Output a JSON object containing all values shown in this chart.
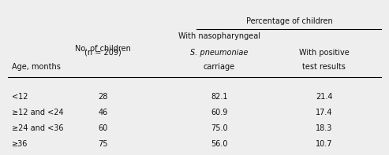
{
  "header_top": "Percentage of children",
  "col0_header_line1": "Age, months",
  "col1_header_line1": "No. of children",
  "col1_header_line2": "(n = 209)",
  "col2_header_line1": "With nasopharyngeal",
  "col2_header_line2": "S. pneumoniae",
  "col2_header_line3": "carriage",
  "col3_header_line1": "With positive",
  "col3_header_line2": "test results",
  "rows": [
    [
      "<12",
      "28",
      "82.1",
      "21.4"
    ],
    [
      "≥12 and <24",
      "46",
      "60.9",
      "17.4"
    ],
    [
      "≥24 and <36",
      "60",
      "75.0",
      "18.3"
    ],
    [
      "≥36",
      "75",
      "56.0",
      "10.7"
    ]
  ],
  "bg_color": "#eeeeee",
  "font_size": 7.0,
  "text_color": "#111111"
}
